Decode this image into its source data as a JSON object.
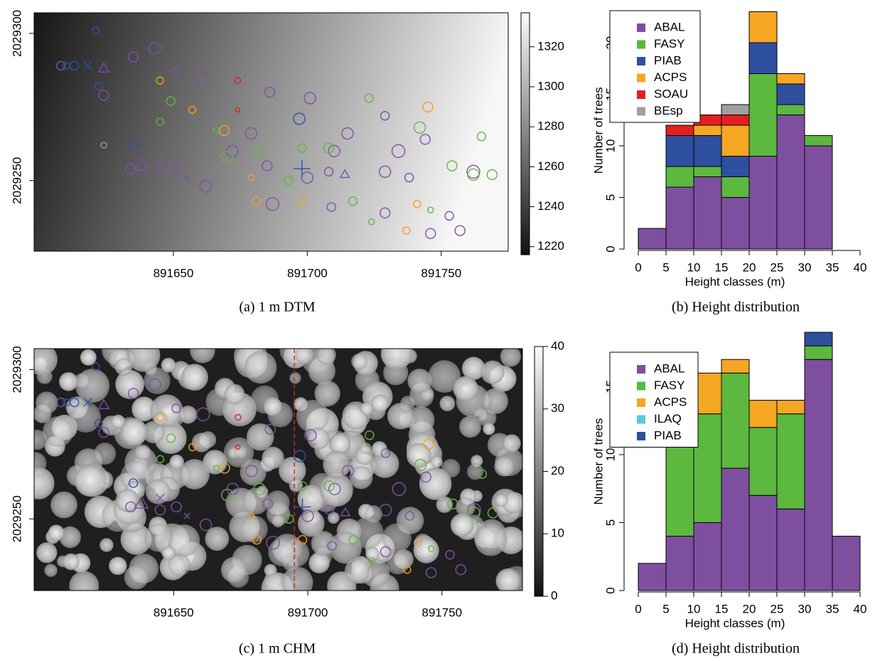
{
  "chart_data": [
    {
      "type": "map",
      "raster": "gradient",
      "caption": "(a) 1 m DTM",
      "xlim": [
        891598,
        891775
      ],
      "xticks": [
        891650,
        891700,
        891750
      ],
      "ylim": [
        2029226,
        2029307
      ],
      "yticks": [
        2029250,
        2029300
      ],
      "colorbar": {
        "lim": [
          1216,
          1337
        ],
        "ticks": [
          1220,
          1240,
          1260,
          1280,
          1300,
          1320
        ]
      },
      "points": [
        {
          "color": "#8050a8",
          "marker": "circle",
          "x": [
            891635,
            891643,
            891651,
            891661,
            891686,
            891701,
            891715,
            891729,
            891734,
            891744,
            891634,
            891645,
            891651,
            891662,
            891685,
            891700,
            891708,
            891729,
            891738,
            891762,
            891687,
            891709,
            891729,
            891746,
            891757,
            891753,
            891710,
            891672,
            891679,
            891624,
            891608
          ],
          "y": [
            2029292,
            2029295,
            2029287,
            2029285,
            2029280,
            2029278,
            2029266,
            2029272,
            2029260,
            2029264,
            2029254,
            2029253,
            2029254,
            2029248,
            2029255,
            2029251,
            2029253,
            2029253,
            2029251,
            2029253,
            2029242,
            2029241,
            2029239,
            2029232,
            2029233,
            2029238,
            2029260,
            2029260,
            2029266,
            2029279,
            2029289
          ],
          "sizes": [
            7,
            8,
            6,
            9,
            7,
            8,
            8,
            6,
            9,
            7,
            7,
            7,
            7,
            8,
            7,
            8,
            6,
            8,
            6,
            9,
            9,
            6,
            7,
            7,
            7,
            6,
            8,
            8,
            8,
            7,
            6
          ]
        },
        {
          "color": "#60b840",
          "marker": "circle",
          "x": [
            891649,
            891666,
            891670,
            891682,
            891693,
            891698,
            891708,
            891723,
            891742,
            891754,
            891762,
            891769,
            891765,
            891717,
            891724,
            891746,
            891645
          ],
          "y": [
            2029277,
            2029267,
            2029258,
            2029260,
            2029250,
            2029261,
            2029261,
            2029278,
            2029268,
            2029255,
            2029252,
            2029252,
            2029265,
            2029243,
            2029236,
            2029240,
            2029270
          ],
          "sizes": [
            6,
            4,
            8,
            8,
            6,
            6,
            7,
            6,
            8,
            7,
            8,
            7,
            6,
            6,
            4,
            4,
            5
          ]
        },
        {
          "color": "#f5a020",
          "marker": "circle",
          "x": [
            891645,
            891657,
            891669,
            891679,
            891681,
            891698,
            891745,
            891737,
            891741
          ],
          "y": [
            2029284,
            2029274,
            2029267,
            2029251,
            2029243,
            2029243,
            2029275,
            2029233,
            2029242
          ],
          "sizes": [
            5,
            5,
            7,
            4,
            6,
            6,
            7,
            5,
            5
          ]
        },
        {
          "color": "#3050a8",
          "marker": "circle",
          "x": [
            891621,
            891610,
            891613,
            891635,
            891622,
            891697
          ],
          "y": [
            2029301,
            2029289,
            2029289,
            2029262,
            2029282,
            2029271
          ],
          "sizes": [
            5,
            5,
            6,
            6,
            5,
            8
          ]
        },
        {
          "color": "#e02020",
          "marker": "circle",
          "x": [
            891674,
            891674
          ],
          "y": [
            2029284,
            2029274
          ],
          "sizes": [
            4,
            3
          ]
        },
        {
          "color": "#a0a0a0",
          "marker": "circle",
          "x": [
            891624
          ],
          "y": [
            2029262
          ],
          "sizes": [
            4
          ]
        },
        {
          "color": "#8050a8",
          "marker": "triangle",
          "x": [
            891638,
            891624,
            891714
          ],
          "y": [
            2029255,
            2029288,
            2029252
          ],
          "sizes": [
            9,
            7,
            6
          ]
        },
        {
          "color": "#3050a8",
          "marker": "cross",
          "x": [
            891618
          ],
          "y": [
            2029289
          ],
          "sizes": [
            6
          ]
        },
        {
          "color": "#8050a8",
          "marker": "cross",
          "x": [
            891645,
            891655
          ],
          "y": [
            2029257,
            2029251
          ],
          "sizes": [
            6,
            4
          ]
        },
        {
          "color": "#3050a8",
          "marker": "plus",
          "x": [
            891698
          ],
          "y": [
            2029254
          ],
          "sizes": [
            12
          ]
        }
      ]
    },
    {
      "type": "stacked-histogram",
      "caption": "(b) Height distribution",
      "xlabel": "Height classes (m)",
      "ylabel": "Number of trees",
      "bins": [
        0,
        5,
        10,
        15,
        20,
        25,
        30,
        35,
        40
      ],
      "xlim": [
        0,
        40
      ],
      "xticks": [
        0,
        5,
        10,
        15,
        20,
        25,
        30,
        35,
        40
      ],
      "ylim": [
        0,
        23
      ],
      "yticks": [
        0,
        5,
        10,
        15,
        20
      ],
      "legend": "top-left",
      "series": [
        {
          "name": "ABAL",
          "color": "#7f4f9f",
          "values": [
            2,
            6,
            7,
            5,
            9,
            13,
            10,
            0
          ]
        },
        {
          "name": "FASY",
          "color": "#5cb83f",
          "values": [
            0,
            2,
            1,
            2,
            8,
            1,
            1,
            0
          ]
        },
        {
          "name": "PIAB",
          "color": "#2f4f9f",
          "values": [
            0,
            3,
            3,
            2,
            3,
            2,
            0,
            0
          ]
        },
        {
          "name": "ACPS",
          "color": "#f5a623",
          "values": [
            0,
            0,
            1,
            3,
            3,
            1,
            0,
            0
          ]
        },
        {
          "name": "SOAU",
          "color": "#e32020",
          "values": [
            0,
            1,
            1,
            1,
            0,
            0,
            0,
            0
          ]
        },
        {
          "name": "BEsp",
          "color": "#a0a0a0",
          "values": [
            0,
            0,
            0,
            1,
            0,
            0,
            0,
            0
          ]
        }
      ]
    },
    {
      "type": "map",
      "raster": "canopy",
      "caption": "(c) 1 m CHM",
      "xlim": [
        891598,
        891780
      ],
      "xticks": [
        891650,
        891700,
        891750
      ],
      "ylim": [
        2029226,
        2029307
      ],
      "yticks": [
        2029250,
        2029300
      ],
      "vline": 891695,
      "colorbar": {
        "lim": [
          0,
          40
        ],
        "ticks": [
          0,
          10,
          20,
          30,
          40
        ]
      },
      "points": [
        {
          "color": "#8050a8",
          "marker": "circle",
          "x": [
            891635,
            891643,
            891651,
            891661,
            891686,
            891701,
            891715,
            891729,
            891734,
            891744,
            891634,
            891645,
            891651,
            891662,
            891685,
            891700,
            891708,
            891729,
            891738,
            891762,
            891687,
            891709,
            891729,
            891746,
            891757,
            891753,
            891710,
            891672,
            891679,
            891624,
            891608
          ],
          "y": [
            2029292,
            2029295,
            2029287,
            2029285,
            2029280,
            2029278,
            2029266,
            2029272,
            2029260,
            2029264,
            2029254,
            2029253,
            2029254,
            2029248,
            2029255,
            2029251,
            2029253,
            2029253,
            2029251,
            2029253,
            2029242,
            2029241,
            2029239,
            2029232,
            2029233,
            2029238,
            2029260,
            2029260,
            2029266,
            2029279,
            2029289
          ],
          "sizes": [
            7,
            8,
            6,
            9,
            7,
            8,
            8,
            6,
            9,
            7,
            7,
            7,
            7,
            8,
            7,
            8,
            6,
            8,
            6,
            9,
            9,
            6,
            7,
            7,
            7,
            6,
            8,
            8,
            8,
            7,
            6
          ]
        },
        {
          "color": "#60b840",
          "marker": "circle",
          "x": [
            891649,
            891666,
            891670,
            891682,
            891693,
            891698,
            891708,
            891723,
            891742,
            891754,
            891762,
            891769,
            891765,
            891717,
            891724,
            891746,
            891645
          ],
          "y": [
            2029277,
            2029267,
            2029258,
            2029260,
            2029250,
            2029261,
            2029261,
            2029278,
            2029268,
            2029255,
            2029252,
            2029252,
            2029265,
            2029243,
            2029236,
            2029240,
            2029270
          ],
          "sizes": [
            6,
            4,
            8,
            8,
            6,
            6,
            7,
            6,
            8,
            7,
            8,
            7,
            6,
            6,
            4,
            4,
            5
          ]
        },
        {
          "color": "#f5a020",
          "marker": "circle",
          "x": [
            891645,
            891657,
            891669,
            891679,
            891681,
            891698,
            891745,
            891737,
            891741
          ],
          "y": [
            2029284,
            2029274,
            2029267,
            2029251,
            2029243,
            2029243,
            2029275,
            2029233,
            2029242
          ],
          "sizes": [
            5,
            5,
            7,
            4,
            6,
            6,
            7,
            5,
            5
          ]
        },
        {
          "color": "#3050a8",
          "marker": "circle",
          "x": [
            891621,
            891610,
            891613,
            891635,
            891622,
            891697
          ],
          "y": [
            2029301,
            2029289,
            2029289,
            2029262,
            2029282,
            2029271
          ],
          "sizes": [
            5,
            5,
            6,
            6,
            5,
            8
          ]
        },
        {
          "color": "#e02020",
          "marker": "circle",
          "x": [
            891674,
            891674
          ],
          "y": [
            2029284,
            2029274
          ],
          "sizes": [
            4,
            3
          ]
        },
        {
          "color": "#c0c0c0",
          "marker": "circle",
          "x": [
            891624
          ],
          "y": [
            2029262
          ],
          "sizes": [
            4
          ]
        },
        {
          "color": "#8050a8",
          "marker": "triangle",
          "x": [
            891638,
            891624,
            891714
          ],
          "y": [
            2029255,
            2029288,
            2029252
          ],
          "sizes": [
            9,
            7,
            6
          ]
        },
        {
          "color": "#3050a8",
          "marker": "cross",
          "x": [
            891618
          ],
          "y": [
            2029289
          ],
          "sizes": [
            6
          ]
        },
        {
          "color": "#8050a8",
          "marker": "cross",
          "x": [
            891645,
            891655
          ],
          "y": [
            2029257,
            2029251
          ],
          "sizes": [
            6,
            4
          ]
        },
        {
          "color": "#3050a8",
          "marker": "plus",
          "x": [
            891698
          ],
          "y": [
            2029254
          ],
          "sizes": [
            12
          ]
        }
      ]
    },
    {
      "type": "stacked-histogram",
      "caption": "(d) Height distribution",
      "xlabel": "Height classes (m)",
      "ylabel": "Number of trees",
      "bins": [
        0,
        5,
        10,
        15,
        20,
        25,
        30,
        35,
        40
      ],
      "xlim": [
        0,
        40
      ],
      "xticks": [
        0,
        5,
        10,
        15,
        20,
        25,
        30,
        35,
        40
      ],
      "ylim": [
        0,
        19
      ],
      "yticks": [
        0,
        5,
        10,
        15
      ],
      "legend": "top-left",
      "series": [
        {
          "name": "ABAL",
          "color": "#7f4f9f",
          "values": [
            2,
            4,
            5,
            9,
            7,
            6,
            17,
            4
          ]
        },
        {
          "name": "FASY",
          "color": "#5cb83f",
          "values": [
            0,
            7,
            8,
            7,
            5,
            7,
            1,
            0
          ]
        },
        {
          "name": "ACPS",
          "color": "#f5a623",
          "values": [
            0,
            0,
            3,
            1,
            2,
            1,
            0,
            0
          ]
        },
        {
          "name": "ILAQ",
          "color": "#5bc8d8",
          "values": [
            0,
            1,
            0,
            0,
            0,
            0,
            0,
            0
          ]
        },
        {
          "name": "PIAB",
          "color": "#2f4f9f",
          "values": [
            0,
            0,
            0,
            0,
            0,
            0,
            1,
            0
          ]
        }
      ]
    }
  ]
}
